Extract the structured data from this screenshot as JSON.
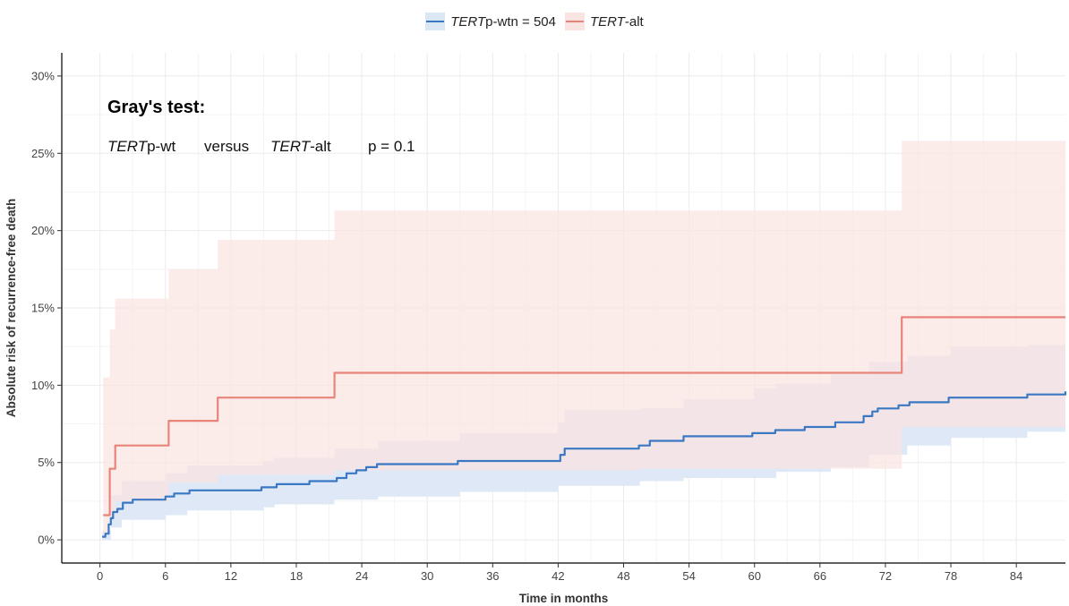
{
  "legend": {
    "item1": {
      "italic": "TERT",
      "rest": "p-wtn = 504"
    },
    "item2": {
      "italic": "TERT",
      "rest": "-alt"
    }
  },
  "annotation": {
    "title": "Gray's test:",
    "group1_italic": "TERT",
    "group1_rest": "p-wt",
    "versus": "versus",
    "group2_italic": "TERT",
    "group2_rest": "-alt",
    "pvalue": "p = 0.1"
  },
  "chart_data": {
    "type": "line",
    "title": "",
    "xlabel": "Time in months",
    "ylabel": "Absolute risk of recurrence-free death",
    "xlim": [
      -3.5,
      88.5
    ],
    "ylim": [
      -1.5,
      31.5
    ],
    "xticks": [
      0,
      6,
      12,
      18,
      24,
      30,
      36,
      42,
      48,
      54,
      60,
      66,
      72,
      78,
      84
    ],
    "yticks": [
      0,
      5,
      10,
      15,
      20,
      25,
      30
    ],
    "ytick_labels": [
      "0%",
      "5%",
      "10%",
      "15%",
      "20%",
      "25%",
      "30%"
    ],
    "grid": true,
    "legend_position": "top",
    "series": [
      {
        "name": "TERTp-wtn = 504",
        "color": "#3a78c3",
        "band_color": "#dce7f5",
        "step": [
          [
            0.2,
            0.2
          ],
          [
            0.5,
            0.4
          ],
          [
            0.8,
            1.0
          ],
          [
            1.0,
            1.4
          ],
          [
            1.2,
            1.8
          ],
          [
            1.6,
            2.0
          ],
          [
            2.1,
            2.4
          ],
          [
            3.0,
            2.6
          ],
          [
            6.0,
            2.8
          ],
          [
            6.8,
            3.0
          ],
          [
            8.2,
            3.2
          ],
          [
            14.8,
            3.4
          ],
          [
            16.2,
            3.6
          ],
          [
            19.2,
            3.8
          ],
          [
            21.7,
            4.0
          ],
          [
            22.6,
            4.3
          ],
          [
            23.5,
            4.5
          ],
          [
            24.4,
            4.7
          ],
          [
            25.4,
            4.9
          ],
          [
            32.8,
            5.1
          ],
          [
            42.2,
            5.5
          ],
          [
            42.6,
            5.9
          ],
          [
            49.4,
            6.1
          ],
          [
            50.4,
            6.4
          ],
          [
            53.5,
            6.7
          ],
          [
            59.8,
            6.9
          ],
          [
            61.9,
            7.1
          ],
          [
            64.6,
            7.3
          ],
          [
            67.4,
            7.6
          ],
          [
            70.0,
            8.0
          ],
          [
            70.8,
            8.3
          ],
          [
            71.3,
            8.5
          ],
          [
            73.2,
            8.7
          ],
          [
            74.2,
            8.9
          ],
          [
            77.8,
            9.2
          ],
          [
            85.0,
            9.4
          ],
          [
            88.5,
            9.6
          ]
        ],
        "lower": [
          [
            0.2,
            0.0
          ],
          [
            1.0,
            0.8
          ],
          [
            2.0,
            1.3
          ],
          [
            6.0,
            1.6
          ],
          [
            8.0,
            1.9
          ],
          [
            15.0,
            2.1
          ],
          [
            16.0,
            2.3
          ],
          [
            21.5,
            2.6
          ],
          [
            25.5,
            2.8
          ],
          [
            33.0,
            3.1
          ],
          [
            42.0,
            3.5
          ],
          [
            49.5,
            3.8
          ],
          [
            53.5,
            4.0
          ],
          [
            62.0,
            4.4
          ],
          [
            67.0,
            4.7
          ],
          [
            70.5,
            5.5
          ],
          [
            74.0,
            6.1
          ],
          [
            78.0,
            6.6
          ],
          [
            85.0,
            7.0
          ],
          [
            88.5,
            7.2
          ]
        ],
        "upper": [
          [
            0.2,
            0.6
          ],
          [
            1.0,
            2.9
          ],
          [
            2.0,
            3.8
          ],
          [
            6.0,
            4.3
          ],
          [
            8.0,
            4.8
          ],
          [
            15.0,
            5.1
          ],
          [
            16.0,
            5.3
          ],
          [
            21.5,
            5.9
          ],
          [
            25.5,
            6.4
          ],
          [
            33.0,
            6.9
          ],
          [
            42.0,
            7.6
          ],
          [
            42.6,
            8.4
          ],
          [
            49.5,
            8.5
          ],
          [
            53.5,
            9.1
          ],
          [
            60.0,
            9.8
          ],
          [
            62.0,
            10.1
          ],
          [
            67.0,
            10.7
          ],
          [
            70.5,
            11.5
          ],
          [
            74.0,
            11.9
          ],
          [
            78.0,
            12.5
          ],
          [
            85.0,
            12.6
          ],
          [
            88.5,
            12.9
          ]
        ]
      },
      {
        "name": "TERT-alt",
        "color": "#e8847a",
        "band_color": "#f9e4e2",
        "step": [
          [
            0.3,
            1.6
          ],
          [
            0.9,
            4.6
          ],
          [
            1.4,
            6.1
          ],
          [
            6.3,
            7.7
          ],
          [
            10.8,
            9.2
          ],
          [
            20.2,
            9.2
          ],
          [
            21.5,
            10.8
          ],
          [
            49.5,
            10.8
          ],
          [
            73.5,
            14.4
          ],
          [
            88.5,
            14.4
          ]
        ],
        "lower": [
          [
            0.3,
            0.3
          ],
          [
            0.9,
            1.5
          ],
          [
            1.4,
            2.5
          ],
          [
            6.3,
            3.7
          ],
          [
            10.8,
            4.2
          ],
          [
            21.5,
            4.5
          ],
          [
            49.5,
            4.6
          ],
          [
            73.5,
            7.3
          ],
          [
            88.5,
            7.8
          ]
        ],
        "upper": [
          [
            0.3,
            10.5
          ],
          [
            0.9,
            13.6
          ],
          [
            1.4,
            15.6
          ],
          [
            6.3,
            17.5
          ],
          [
            10.8,
            19.4
          ],
          [
            20.2,
            19.4
          ],
          [
            21.5,
            21.3
          ],
          [
            49.5,
            21.3
          ],
          [
            73.5,
            25.8
          ],
          [
            88.5,
            25.8
          ]
        ]
      }
    ]
  }
}
